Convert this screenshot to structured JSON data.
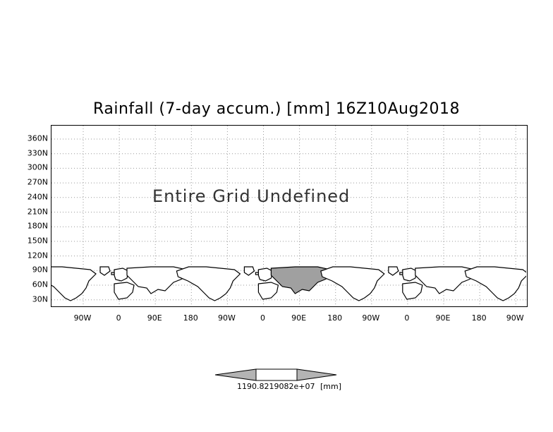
{
  "map": {
    "title": "Rainfall (7-day accum.) [mm] 16Z10Aug2018",
    "message": "Entire Grid Undefined",
    "y_ticks": [
      "360N",
      "330N",
      "300N",
      "270N",
      "240N",
      "210N",
      "180N",
      "150N",
      "120N",
      "90N",
      "60N",
      "30N"
    ],
    "x_ticks": [
      "90W",
      "0",
      "90E",
      "180",
      "90W",
      "0",
      "90E",
      "180",
      "90W",
      "0",
      "90E",
      "180",
      "90W"
    ],
    "colors": {
      "land_fill": "#a0a0a0",
      "grid": "#9a9a9a",
      "frame": "#000000"
    }
  },
  "colorbar": {
    "label": "1190.8219082e+07",
    "unit": "[mm]",
    "colors": {
      "left": "#b4b4b4",
      "middle": "#ffffff",
      "right": "#b4b4b4"
    }
  }
}
